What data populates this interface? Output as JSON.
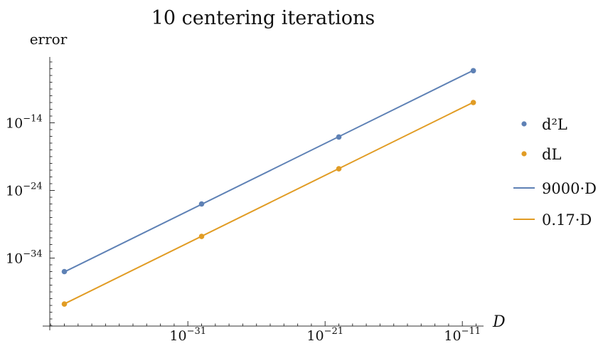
{
  "chart_data": {
    "type": "scatter",
    "title": "10 centering iterations",
    "xlabel": "D",
    "ylabel": "error",
    "x_scale": "log",
    "y_scale": "log",
    "grid": false,
    "legend_position": "right",
    "x_ticks": [
      {
        "exp": -31,
        "base": "10",
        "sup": "−31"
      },
      {
        "exp": -21,
        "base": "10",
        "sup": "−21"
      },
      {
        "exp": -11,
        "base": "10",
        "sup": "−11"
      }
    ],
    "y_ticks": [
      {
        "exp": -14,
        "base": "10",
        "sup": "−14"
      },
      {
        "exp": -24,
        "base": "10",
        "sup": "−24"
      },
      {
        "exp": -34,
        "base": "10",
        "sup": "−34"
      }
    ],
    "x_log_range": [
      -41,
      -10
    ],
    "y_log_range": [
      -44,
      -5
    ],
    "series": [
      {
        "name": "d²L",
        "kind": "points",
        "color": "#5e81b5",
        "x_log10": [
          -40,
          -30,
          -20,
          -10.2
        ],
        "y_log10": [
          -36.0,
          -26.0,
          -16.1,
          -6.3
        ]
      },
      {
        "name": "dL",
        "kind": "points",
        "color": "#e19c24",
        "x_log10": [
          -40,
          -30,
          -20,
          -10.2
        ],
        "y_log10": [
          -40.8,
          -30.8,
          -20.8,
          -11.0
        ]
      },
      {
        "name": "9000·D",
        "kind": "line",
        "color": "#5e81b5",
        "coef_log10": 3.954,
        "x_log10_range": [
          -40,
          -10.2
        ]
      },
      {
        "name": "0.17·D",
        "kind": "line",
        "color": "#e19c24",
        "coef_log10": -0.77,
        "x_log10_range": [
          -40,
          -10.2
        ]
      }
    ]
  }
}
